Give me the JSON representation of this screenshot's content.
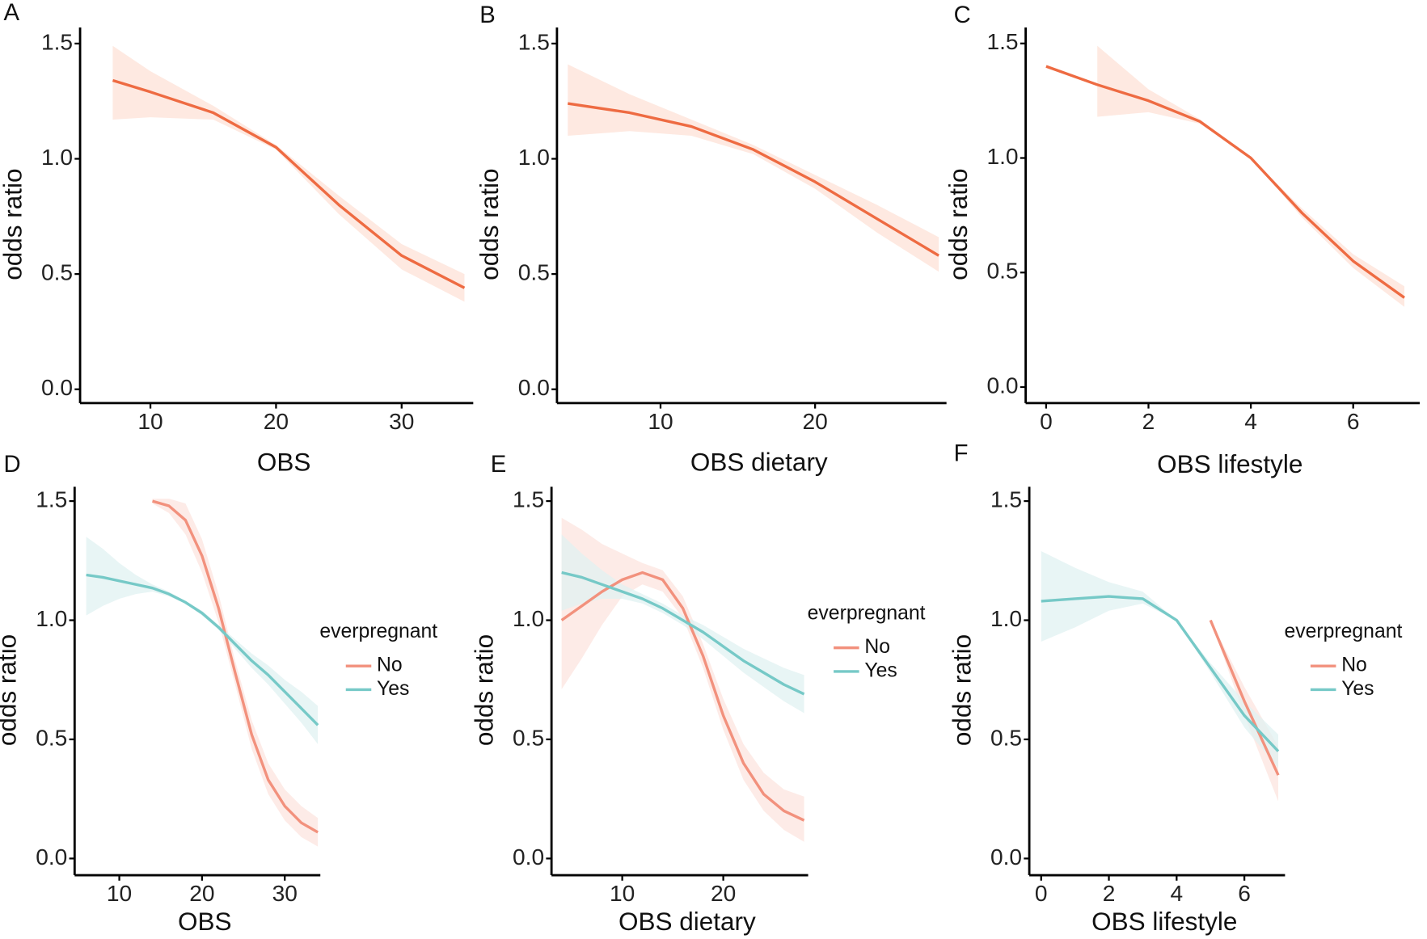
{
  "chart_data": [
    {
      "type": "line",
      "label": "A",
      "x_label": "OBS",
      "y_label": "odds ratio",
      "x": [
        7,
        10,
        15,
        20,
        25,
        30,
        35
      ],
      "series": [
        {
          "color": "#ee6b42",
          "band_color": "#fde2d7",
          "values": [
            1.34,
            1.29,
            1.2,
            1.05,
            0.8,
            0.58,
            0.44
          ],
          "lower": [
            1.17,
            1.18,
            1.17,
            1.04,
            0.76,
            0.52,
            0.38
          ],
          "upper": [
            1.49,
            1.38,
            1.23,
            1.06,
            0.84,
            0.63,
            0.5
          ]
        }
      ],
      "xlim": [
        4.4,
        35.7
      ],
      "ylim": [
        -0.06,
        1.57
      ],
      "xticks": [
        10,
        20,
        30
      ],
      "yticks": [
        {
          "value": 0,
          "label": "0.0"
        },
        0.5,
        {
          "value": 1,
          "label": "1.0"
        },
        1.5
      ]
    },
    {
      "type": "line",
      "label": "B",
      "x_label": "OBS dietary",
      "y_label": "odds ratio",
      "x": [
        4,
        8,
        12,
        16,
        20,
        24,
        28
      ],
      "series": [
        {
          "color": "#ee6b42",
          "band_color": "#fde2d7",
          "values": [
            1.24,
            1.2,
            1.14,
            1.04,
            0.9,
            0.74,
            0.58
          ],
          "lower": [
            1.1,
            1.12,
            1.1,
            1.02,
            0.87,
            0.68,
            0.51
          ],
          "upper": [
            1.41,
            1.28,
            1.17,
            1.06,
            0.93,
            0.8,
            0.66
          ]
        }
      ],
      "xlim": [
        3.3,
        28.5
      ],
      "ylim": [
        -0.06,
        1.57
      ],
      "xticks": [
        10,
        20
      ],
      "yticks": [
        {
          "value": 0,
          "label": "0.0"
        },
        0.5,
        {
          "value": 1,
          "label": "1.0"
        },
        1.5
      ]
    },
    {
      "type": "line",
      "label": "C",
      "x_label": "OBS lifestyle",
      "y_label": "odds ratio",
      "x": [
        0,
        1,
        2,
        3,
        4,
        5,
        6,
        7
      ],
      "series": [
        {
          "color": "#ee6b42",
          "band_color": "#fde2d7",
          "values": [
            1.4,
            1.32,
            1.25,
            1.16,
            1.0,
            0.76,
            0.55,
            0.39
          ],
          "lower": [
            null,
            1.18,
            1.2,
            1.15,
            1.0,
            0.74,
            0.52,
            0.35
          ],
          "upper": [
            null,
            1.49,
            1.3,
            1.17,
            1.0,
            0.78,
            0.58,
            0.44
          ]
        }
      ],
      "xlim": [
        -0.4,
        7.3
      ],
      "ylim": [
        -0.07,
        1.57
      ],
      "xticks": [
        0,
        2,
        4,
        6
      ],
      "yticks": [
        {
          "value": 0,
          "label": "0.0"
        },
        0.5,
        {
          "value": 1,
          "label": "1.0"
        },
        1.5
      ]
    },
    {
      "type": "line",
      "label": "D",
      "x_label": "OBS",
      "y_label": "odds ratio",
      "legend_title": "everpregnant",
      "legend": "right",
      "x": [
        6,
        8,
        10,
        12,
        14,
        16,
        18,
        20,
        22,
        24,
        26,
        28,
        30,
        32,
        34
      ],
      "series": [
        {
          "name": "No",
          "color": "#f2917d",
          "band_color": "#fce4df",
          "values": [
            null,
            null,
            null,
            null,
            1.5,
            1.48,
            1.42,
            1.27,
            1.05,
            0.78,
            0.52,
            0.33,
            0.22,
            0.15,
            0.11
          ],
          "lower": [
            null,
            null,
            null,
            null,
            1.49,
            1.45,
            1.36,
            1.2,
            0.99,
            0.73,
            0.46,
            0.27,
            0.16,
            0.09,
            0.05
          ],
          "upper": [
            null,
            null,
            null,
            null,
            1.51,
            1.51,
            1.49,
            1.34,
            1.11,
            0.83,
            0.58,
            0.4,
            0.29,
            0.22,
            0.17
          ]
        },
        {
          "name": "Yes",
          "color": "#76c9c7",
          "band_color": "#e0f2f2",
          "values": [
            1.19,
            1.18,
            1.165,
            1.15,
            1.135,
            1.11,
            1.075,
            1.03,
            0.97,
            0.9,
            0.83,
            0.77,
            0.7,
            0.63,
            0.56
          ],
          "lower": [
            1.02,
            1.06,
            1.09,
            1.11,
            1.12,
            1.1,
            1.07,
            1.02,
            0.96,
            0.88,
            0.8,
            0.73,
            0.65,
            0.57,
            0.48
          ],
          "upper": [
            1.35,
            1.3,
            1.24,
            1.19,
            1.15,
            1.12,
            1.08,
            1.04,
            0.98,
            0.92,
            0.86,
            0.81,
            0.75,
            0.7,
            0.64
          ]
        }
      ],
      "xlim": [
        4.6,
        34.3
      ],
      "ylim": [
        -0.07,
        1.56
      ],
      "xticks": [
        10,
        20,
        30
      ],
      "yticks": [
        {
          "value": 0,
          "label": "0.0"
        },
        0.5,
        {
          "value": 1,
          "label": "1.0"
        },
        1.5
      ]
    },
    {
      "type": "line",
      "label": "E",
      "x_label": "OBS dietary",
      "y_label": "odds ratio",
      "legend_title": "everpregnant",
      "legend": "right",
      "x": [
        4,
        6,
        8,
        10,
        12,
        14,
        16,
        18,
        20,
        22,
        24,
        26,
        28
      ],
      "series": [
        {
          "name": "No",
          "color": "#f2917d",
          "band_color": "#fce4df",
          "values": [
            1.0,
            1.06,
            1.12,
            1.17,
            1.2,
            1.17,
            1.05,
            0.85,
            0.6,
            0.4,
            0.27,
            0.2,
            0.16
          ],
          "lower": [
            0.71,
            0.84,
            0.98,
            1.1,
            1.15,
            1.12,
            1.01,
            0.8,
            0.54,
            0.33,
            0.2,
            0.12,
            0.07
          ],
          "upper": [
            1.43,
            1.38,
            1.32,
            1.28,
            1.24,
            1.21,
            1.1,
            0.9,
            0.67,
            0.48,
            0.36,
            0.29,
            0.26
          ]
        },
        {
          "name": "Yes",
          "color": "#76c9c7",
          "band_color": "#e0f2f2",
          "values": [
            1.2,
            1.18,
            1.15,
            1.12,
            1.09,
            1.05,
            1.0,
            0.95,
            0.89,
            0.83,
            0.78,
            0.73,
            0.69
          ],
          "lower": [
            1.04,
            1.07,
            1.09,
            1.09,
            1.07,
            1.03,
            0.98,
            0.92,
            0.85,
            0.78,
            0.72,
            0.66,
            0.61
          ],
          "upper": [
            1.36,
            1.28,
            1.21,
            1.15,
            1.11,
            1.07,
            1.02,
            0.98,
            0.93,
            0.88,
            0.84,
            0.8,
            0.77
          ]
        }
      ],
      "xlim": [
        3.0,
        28.4
      ],
      "ylim": [
        -0.07,
        1.56
      ],
      "xticks": [
        10,
        20
      ],
      "yticks": [
        {
          "value": 0,
          "label": "0.0"
        },
        0.5,
        {
          "value": 1,
          "label": "1.0"
        },
        1.5
      ]
    },
    {
      "type": "line",
      "label": "F",
      "x_label": "OBS lifestyle",
      "y_label": "odds ratio",
      "legend_title": "everpregnant",
      "legend": "right",
      "x": [
        0,
        1,
        2,
        3,
        4,
        5,
        6,
        7
      ],
      "series": [
        {
          "name": "No",
          "color": "#f2917d",
          "band_color": "#fce4df",
          "values": [
            null,
            null,
            null,
            null,
            null,
            1.0,
            0.66,
            0.35
          ],
          "lower": [
            null,
            null,
            null,
            null,
            null,
            1.0,
            0.6,
            0.24
          ],
          "upper": [
            null,
            null,
            null,
            null,
            null,
            1.0,
            0.72,
            0.47
          ]
        },
        {
          "name": "Yes",
          "color": "#76c9c7",
          "band_color": "#e0f2f2",
          "values": [
            1.08,
            1.09,
            1.1,
            1.09,
            1.0,
            0.8,
            0.6,
            0.45
          ],
          "lower": [
            0.91,
            0.97,
            1.04,
            1.07,
            1.0,
            0.78,
            0.55,
            0.38
          ],
          "upper": [
            1.29,
            1.22,
            1.16,
            1.12,
            1.0,
            0.82,
            0.66,
            0.52
          ]
        }
      ],
      "xlim": [
        -0.35,
        7.2
      ],
      "ylim": [
        -0.07,
        1.56
      ],
      "xticks": [
        0,
        2,
        4,
        6
      ],
      "yticks": [
        {
          "value": 0,
          "label": "0.0"
        },
        0.5,
        {
          "value": 1,
          "label": "1.0"
        },
        1.5
      ]
    }
  ]
}
